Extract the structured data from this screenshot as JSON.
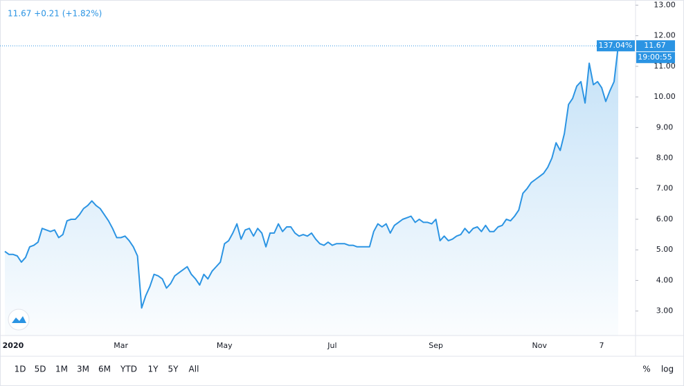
{
  "chart_data": {
    "type": "area",
    "header": "11.67 +0.21 (+1.82%)",
    "change_label": "137.04%",
    "time_label": "19:00:55",
    "ranges": [
      "1D",
      "5D",
      "1M",
      "3M",
      "6M",
      "YTD",
      "1Y",
      "5Y",
      "All"
    ],
    "scale_options": [
      "%",
      "log"
    ],
    "color": "#2b94e3",
    "grid": false,
    "ylim": [
      2.2,
      13.1
    ],
    "yticks": [
      {
        "value": 3,
        "label": "3.00"
      },
      {
        "value": 4,
        "label": "4.00"
      },
      {
        "value": 5,
        "label": "5.00"
      },
      {
        "value": 6,
        "label": "6.00"
      },
      {
        "value": 7,
        "label": "7.00"
      },
      {
        "value": 8,
        "label": "8.00"
      },
      {
        "value": 9,
        "label": "9.00"
      },
      {
        "value": 10,
        "label": "10.00"
      },
      {
        "value": 11,
        "label": "11.00"
      },
      {
        "value": 12,
        "label": "12.00"
      },
      {
        "value": 13,
        "label": "13.00"
      }
    ],
    "categories": [
      null,
      null,
      "2020",
      null,
      null,
      null,
      null,
      null,
      null,
      null,
      null,
      null,
      null,
      null,
      null,
      null,
      null,
      null,
      null,
      null,
      null,
      null,
      null,
      null,
      null,
      null,
      null,
      null,
      "Mar",
      null,
      null,
      null,
      null,
      null,
      null,
      null,
      null,
      null,
      null,
      null,
      null,
      null,
      null,
      null,
      null,
      null,
      null,
      null,
      null,
      null,
      null,
      null,
      null,
      "May",
      null,
      null,
      null,
      null,
      null,
      null,
      null,
      null,
      null,
      null,
      null,
      null,
      null,
      null,
      null,
      null,
      null,
      null,
      null,
      null,
      null,
      null,
      null,
      null,
      null,
      "Jul",
      null,
      null,
      null,
      null,
      null,
      null,
      null,
      null,
      null,
      null,
      null,
      null,
      null,
      null,
      null,
      null,
      null,
      null,
      null,
      null,
      null,
      null,
      null,
      null,
      "Sep",
      null,
      null,
      null,
      null,
      null,
      null,
      null,
      null,
      null,
      null,
      null,
      null,
      null,
      null,
      null,
      null,
      null,
      null,
      null,
      null,
      null,
      null,
      null,
      null,
      "Nov",
      null,
      null,
      null,
      null,
      null,
      null,
      null,
      null,
      null,
      null,
      null,
      null,
      null,
      null,
      "7",
      null,
      null,
      null,
      null
    ],
    "values": [
      4.95,
      4.85,
      4.85,
      4.8,
      4.6,
      4.75,
      5.1,
      5.15,
      5.25,
      5.7,
      5.65,
      5.6,
      5.65,
      5.4,
      5.5,
      5.95,
      6.0,
      6.0,
      6.15,
      6.35,
      6.45,
      6.6,
      6.45,
      6.35,
      6.15,
      5.95,
      5.7,
      5.4,
      5.4,
      5.45,
      5.3,
      5.1,
      4.8,
      3.1,
      3.5,
      3.8,
      4.2,
      4.15,
      4.05,
      3.75,
      3.9,
      4.15,
      4.25,
      4.35,
      4.45,
      4.2,
      4.05,
      3.85,
      4.2,
      4.05,
      4.3,
      4.45,
      4.6,
      5.2,
      5.3,
      5.55,
      5.85,
      5.35,
      5.65,
      5.7,
      5.45,
      5.7,
      5.55,
      5.1,
      5.55,
      5.55,
      5.85,
      5.6,
      5.75,
      5.75,
      5.55,
      5.45,
      5.5,
      5.45,
      5.55,
      5.35,
      5.2,
      5.15,
      5.25,
      5.15,
      5.2,
      5.2,
      5.2,
      5.15,
      5.15,
      5.1,
      5.1,
      5.1,
      5.1,
      5.6,
      5.85,
      5.75,
      5.85,
      5.55,
      5.8,
      5.9,
      6.0,
      6.05,
      6.1,
      5.9,
      6.0,
      5.9,
      5.9,
      5.85,
      6.0,
      5.3,
      5.45,
      5.3,
      5.35,
      5.45,
      5.5,
      5.7,
      5.55,
      5.7,
      5.75,
      5.6,
      5.8,
      5.6,
      5.6,
      5.75,
      5.8,
      6.0,
      5.95,
      6.1,
      6.3,
      6.85,
      7.0,
      7.2,
      7.3,
      7.4,
      7.5,
      7.7,
      8.0,
      8.5,
      8.25,
      8.8,
      9.75,
      9.95,
      10.35,
      10.5,
      9.8,
      11.1,
      10.4,
      10.5,
      10.3,
      9.85,
      10.2,
      10.5,
      11.67
    ]
  }
}
